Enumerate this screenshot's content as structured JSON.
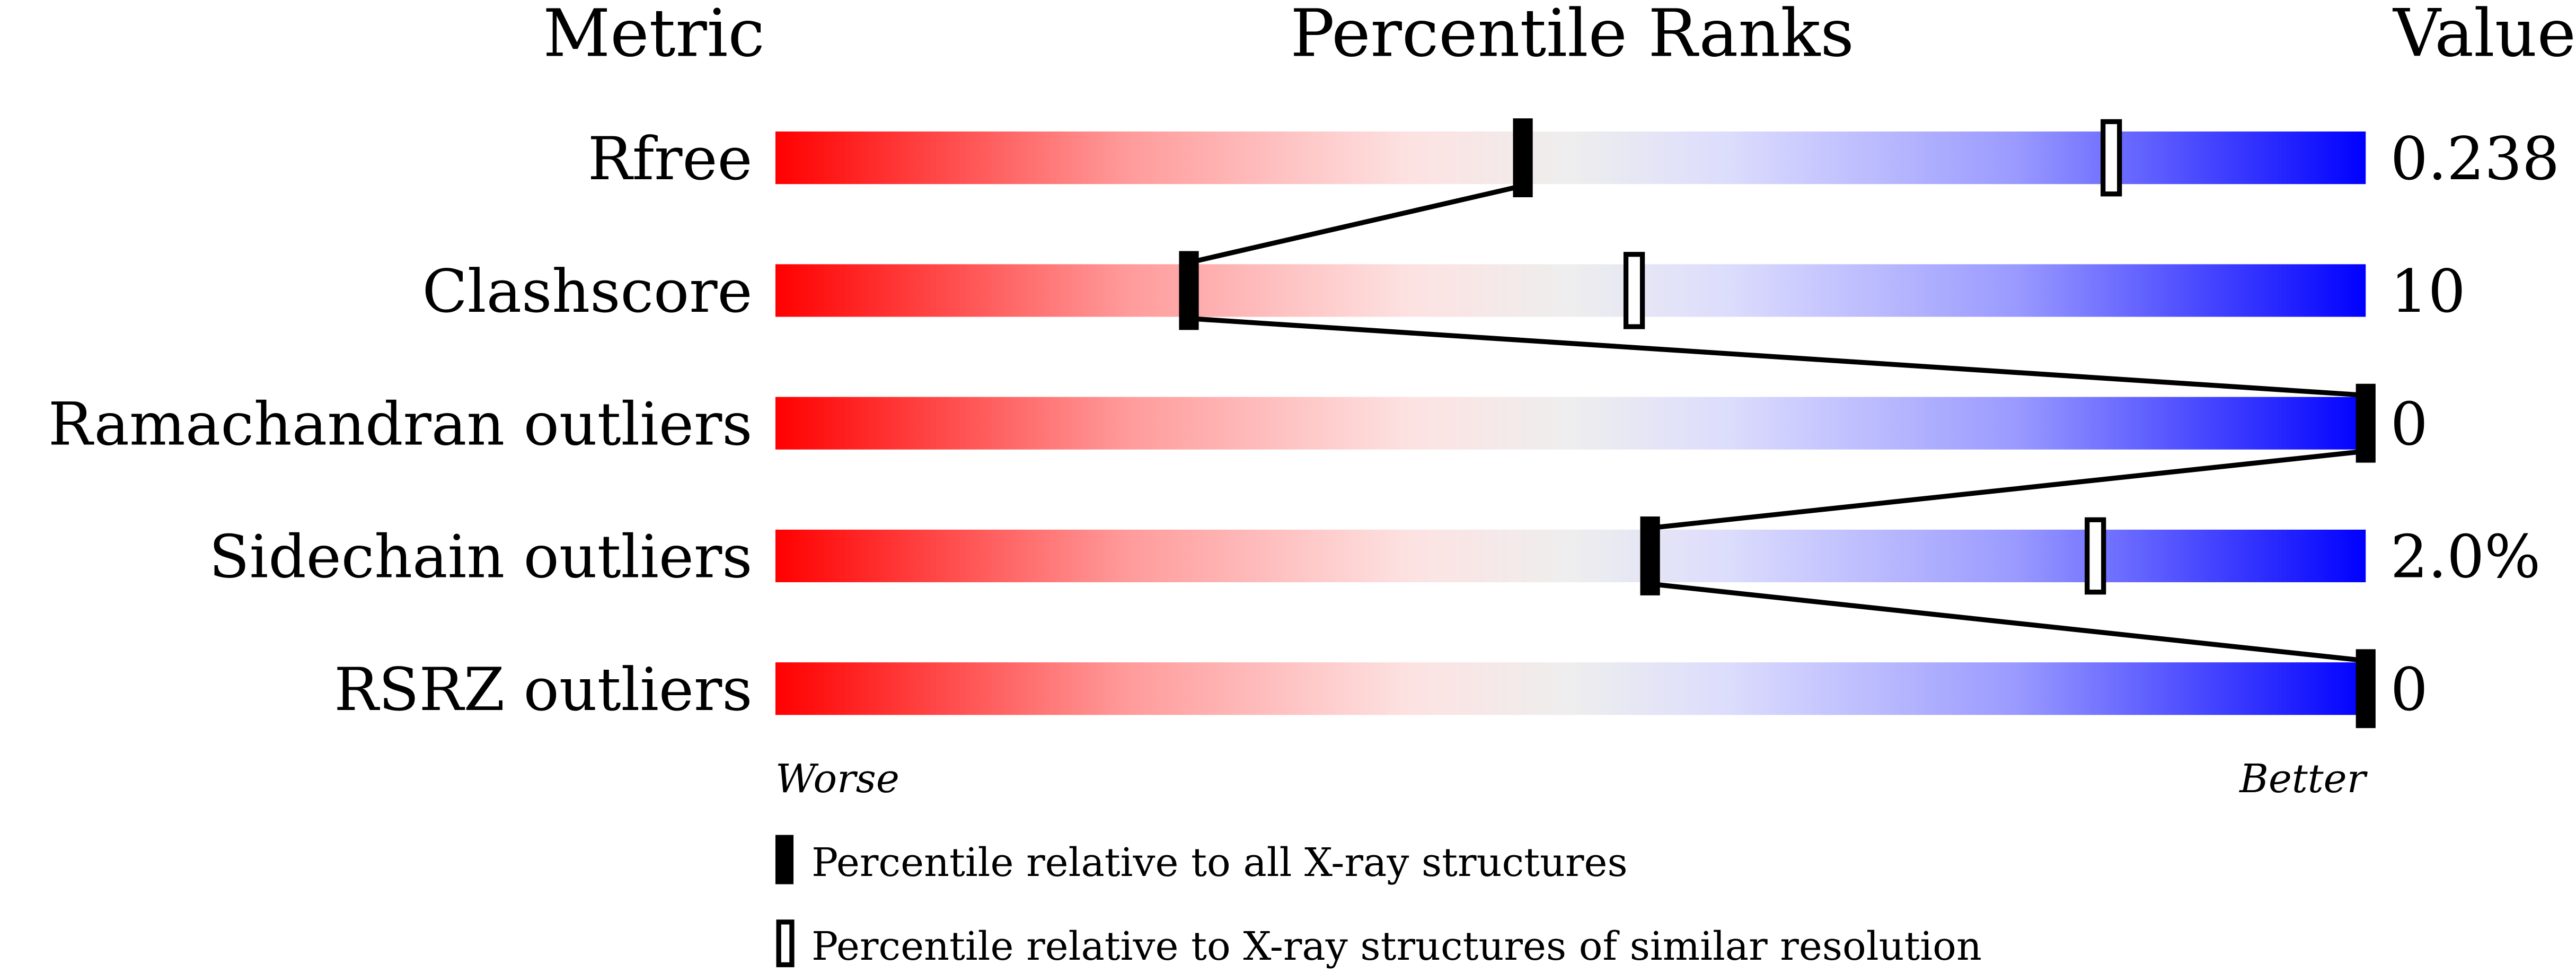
{
  "chart_data": {
    "type": "bar",
    "headers": {
      "metric": "Metric",
      "percentile": "Percentile Ranks",
      "value": "Value"
    },
    "xlim": [
      0,
      100
    ],
    "axis_labels": {
      "left": "Worse",
      "right": "Better"
    },
    "colors": {
      "worse": "#ff0000",
      "middle": "#eeeeee",
      "better": "#0000ff",
      "marker": "#000000"
    },
    "series": [
      {
        "name": "Percentile relative to all X-ray structures",
        "marker": "filled"
      },
      {
        "name": "Percentile relative to X-ray structures of similar resolution",
        "marker": "open"
      }
    ],
    "rows": [
      {
        "metric": "Rfree",
        "value": "0.238",
        "percentile_all": 47,
        "percentile_similar": 84
      },
      {
        "metric": "Clashscore",
        "value": "10",
        "percentile_all": 26,
        "percentile_similar": 54
      },
      {
        "metric": "Ramachandran outliers",
        "value": "0",
        "percentile_all": 100,
        "percentile_similar": null
      },
      {
        "metric": "Sidechain outliers",
        "value": "2.0%",
        "percentile_all": 55,
        "percentile_similar": 83
      },
      {
        "metric": "RSRZ outliers",
        "value": "0",
        "percentile_all": 100,
        "percentile_similar": null
      }
    ]
  }
}
